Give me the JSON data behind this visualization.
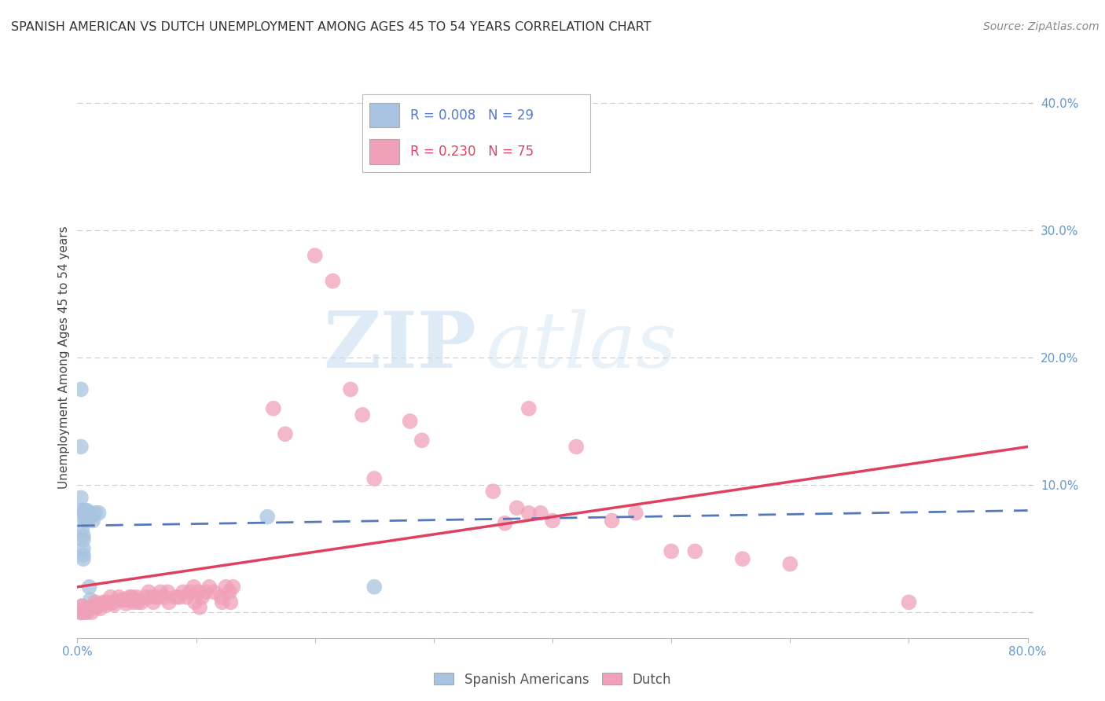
{
  "title": "SPANISH AMERICAN VS DUTCH UNEMPLOYMENT AMONG AGES 45 TO 54 YEARS CORRELATION CHART",
  "source": "Source: ZipAtlas.com",
  "ylabel": "Unemployment Among Ages 45 to 54 years",
  "xlim": [
    0.0,
    0.8
  ],
  "ylim": [
    -0.02,
    0.42
  ],
  "yticks": [
    0.0,
    0.1,
    0.2,
    0.3,
    0.4
  ],
  "ytick_labels": [
    "",
    "10.0%",
    "20.0%",
    "30.0%",
    "40.0%"
  ],
  "blue_color": "#a8c4e0",
  "pink_color": "#f0a0b8",
  "blue_line_color": "#5577bb",
  "pink_line_color": "#e04060",
  "blue_line_style": "--",
  "pink_line_style": "-",
  "watermark_zip": "ZIP",
  "watermark_atlas": "atlas",
  "bg_color": "#ffffff",
  "grid_color": "#cccccc",
  "legend_box_color": "#ffffff",
  "blue_scatter": [
    [
      0.003,
      0.175
    ],
    [
      0.003,
      0.13
    ],
    [
      0.003,
      0.09
    ],
    [
      0.004,
      0.08
    ],
    [
      0.004,
      0.075
    ],
    [
      0.006,
      0.08
    ],
    [
      0.006,
      0.078
    ],
    [
      0.007,
      0.075
    ],
    [
      0.007,
      0.072
    ],
    [
      0.004,
      0.065
    ],
    [
      0.005,
      0.06
    ],
    [
      0.005,
      0.057
    ],
    [
      0.005,
      0.05
    ],
    [
      0.005,
      0.045
    ],
    [
      0.005,
      0.042
    ],
    [
      0.008,
      0.08
    ],
    [
      0.009,
      0.075
    ],
    [
      0.01,
      0.078
    ],
    [
      0.012,
      0.075
    ],
    [
      0.013,
      0.072
    ],
    [
      0.01,
      0.02
    ],
    [
      0.011,
      0.01
    ],
    [
      0.004,
      0.005
    ],
    [
      0.015,
      0.078
    ],
    [
      0.018,
      0.078
    ],
    [
      0.003,
      0.0
    ],
    [
      0.008,
      0.0
    ],
    [
      0.16,
      0.075
    ],
    [
      0.25,
      0.02
    ]
  ],
  "pink_scatter": [
    [
      0.003,
      0.0
    ],
    [
      0.004,
      0.005
    ],
    [
      0.006,
      0.0
    ],
    [
      0.007,
      0.003
    ],
    [
      0.009,
      0.003
    ],
    [
      0.012,
      0.0
    ],
    [
      0.013,
      0.004
    ],
    [
      0.015,
      0.008
    ],
    [
      0.016,
      0.004
    ],
    [
      0.018,
      0.006
    ],
    [
      0.019,
      0.003
    ],
    [
      0.022,
      0.008
    ],
    [
      0.024,
      0.008
    ],
    [
      0.025,
      0.006
    ],
    [
      0.028,
      0.012
    ],
    [
      0.03,
      0.008
    ],
    [
      0.031,
      0.006
    ],
    [
      0.035,
      0.012
    ],
    [
      0.038,
      0.01
    ],
    [
      0.04,
      0.01
    ],
    [
      0.041,
      0.007
    ],
    [
      0.044,
      0.012
    ],
    [
      0.046,
      0.012
    ],
    [
      0.047,
      0.008
    ],
    [
      0.05,
      0.012
    ],
    [
      0.051,
      0.008
    ],
    [
      0.054,
      0.008
    ],
    [
      0.057,
      0.012
    ],
    [
      0.06,
      0.016
    ],
    [
      0.063,
      0.012
    ],
    [
      0.064,
      0.008
    ],
    [
      0.067,
      0.012
    ],
    [
      0.07,
      0.016
    ],
    [
      0.073,
      0.012
    ],
    [
      0.076,
      0.016
    ],
    [
      0.077,
      0.008
    ],
    [
      0.083,
      0.012
    ],
    [
      0.086,
      0.012
    ],
    [
      0.089,
      0.016
    ],
    [
      0.092,
      0.012
    ],
    [
      0.095,
      0.016
    ],
    [
      0.098,
      0.02
    ],
    [
      0.099,
      0.008
    ],
    [
      0.102,
      0.016
    ],
    [
      0.103,
      0.004
    ],
    [
      0.105,
      0.012
    ],
    [
      0.108,
      0.016
    ],
    [
      0.111,
      0.02
    ],
    [
      0.115,
      0.016
    ],
    [
      0.121,
      0.012
    ],
    [
      0.122,
      0.008
    ],
    [
      0.125,
      0.02
    ],
    [
      0.128,
      0.016
    ],
    [
      0.129,
      0.008
    ],
    [
      0.131,
      0.02
    ],
    [
      0.165,
      0.16
    ],
    [
      0.175,
      0.14
    ],
    [
      0.2,
      0.28
    ],
    [
      0.215,
      0.26
    ],
    [
      0.23,
      0.175
    ],
    [
      0.24,
      0.155
    ],
    [
      0.28,
      0.15
    ],
    [
      0.29,
      0.135
    ],
    [
      0.35,
      0.095
    ],
    [
      0.36,
      0.07
    ],
    [
      0.37,
      0.082
    ],
    [
      0.38,
      0.078
    ],
    [
      0.39,
      0.078
    ],
    [
      0.4,
      0.072
    ],
    [
      0.45,
      0.072
    ],
    [
      0.47,
      0.078
    ],
    [
      0.5,
      0.048
    ],
    [
      0.52,
      0.048
    ],
    [
      0.56,
      0.042
    ],
    [
      0.6,
      0.038
    ],
    [
      0.7,
      0.008
    ],
    [
      0.38,
      0.16
    ],
    [
      0.42,
      0.13
    ],
    [
      0.25,
      0.105
    ]
  ]
}
